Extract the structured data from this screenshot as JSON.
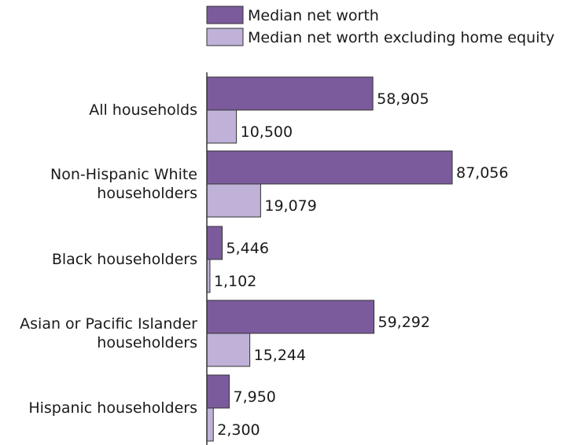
{
  "chart_data": {
    "type": "bar",
    "orientation": "horizontal",
    "categories": [
      [
        "All households"
      ],
      [
        "Non-Hispanic White",
        "householders"
      ],
      [
        "Black householders"
      ],
      [
        "Asian or Pacific Islander",
        "householders"
      ],
      [
        "Hispanic householders"
      ]
    ],
    "series": [
      {
        "name": "Median net worth",
        "color": "#7b5b9c",
        "values": [
          58905,
          87056,
          5446,
          59292,
          7950
        ],
        "labels": [
          "58,905",
          "87,056",
          "5,446",
          "59,292",
          "7,950"
        ]
      },
      {
        "name": "Median net worth excluding home equity",
        "color": "#bfb1d7",
        "values": [
          10500,
          19079,
          1102,
          15244,
          2300
        ],
        "labels": [
          "10,500",
          "19,079",
          "1,102",
          "15,244",
          "2,300"
        ]
      }
    ],
    "xlim": [
      0,
      100000
    ],
    "grid": false,
    "legend_position": "top"
  }
}
